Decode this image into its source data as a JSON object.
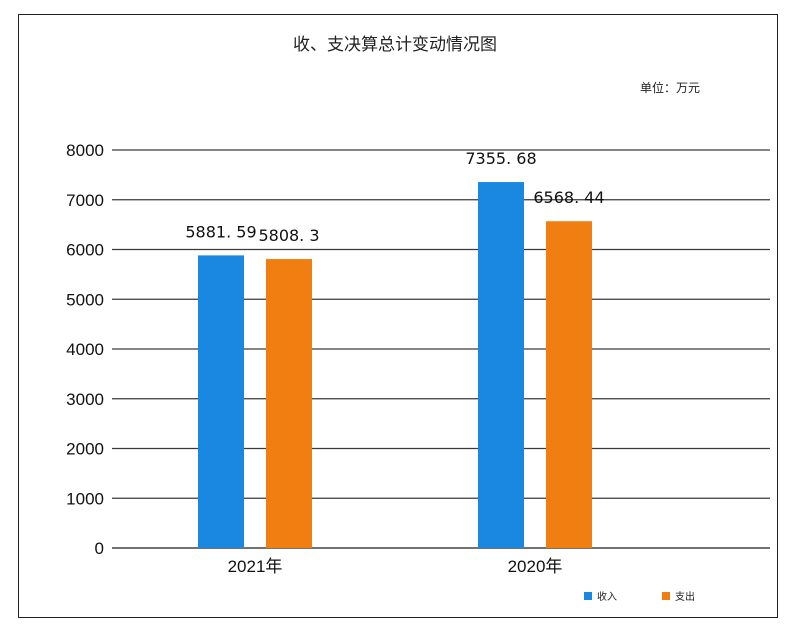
{
  "chart_data": {
    "type": "bar",
    "title": "收、支决算总计变动情况图",
    "unit_label": "单位：万元",
    "categories": [
      "2021年",
      "2020年"
    ],
    "series": [
      {
        "name": "收入",
        "values": [
          5881.59,
          7355.68
        ],
        "labels": [
          "5881. 59",
          "7355. 68"
        ],
        "color": "#1a87e0"
      },
      {
        "name": "支出",
        "values": [
          5808.3,
          6568.44
        ],
        "labels": [
          "5808. 3",
          "6568. 44"
        ],
        "color": "#f07e10"
      }
    ],
    "ylim": [
      0,
      8000
    ],
    "yticks": [
      0,
      1000,
      2000,
      3000,
      4000,
      5000,
      6000,
      7000,
      8000
    ],
    "grid": true,
    "legend_position": "bottom-right"
  }
}
